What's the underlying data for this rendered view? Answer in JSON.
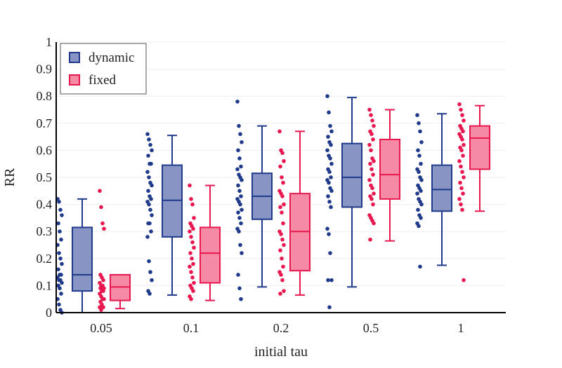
{
  "chart_data": {
    "type": "box",
    "title": "",
    "xlabel": "initial tau",
    "ylabel": "RR",
    "categories": [
      "0.05",
      "0.1",
      "0.2",
      "0.5",
      "1"
    ],
    "ylim": [
      0,
      1
    ],
    "yticks": [
      "0",
      "0.1",
      "0.2",
      "0.3",
      "0.4",
      "0.5",
      "0.6",
      "0.7",
      "0.8",
      "0.9",
      "1"
    ],
    "grid": "horizontal",
    "legend_position": "top-left",
    "series": [
      {
        "name": "dynamic",
        "color": "#1f3a8a",
        "fill": "#8794c4",
        "boxes": [
          {
            "min": 0.0,
            "q1": 0.08,
            "median": 0.14,
            "q3": 0.315,
            "max": 0.42
          },
          {
            "min": 0.065,
            "q1": 0.28,
            "median": 0.415,
            "q3": 0.545,
            "max": 0.655
          },
          {
            "min": 0.095,
            "q1": 0.345,
            "median": 0.43,
            "q3": 0.515,
            "max": 0.69
          },
          {
            "min": 0.095,
            "q1": 0.39,
            "median": 0.5,
            "q3": 0.625,
            "max": 0.795
          },
          {
            "min": 0.175,
            "q1": 0.375,
            "median": 0.455,
            "q3": 0.545,
            "max": 0.735
          }
        ],
        "points": [
          [
            0.42,
            0.41,
            0.38,
            0.36,
            0.33,
            0.3,
            0.27,
            0.25,
            0.22,
            0.2,
            0.18,
            0.16,
            0.14,
            0.14,
            0.13,
            0.12,
            0.12,
            0.11,
            0.1,
            0.09,
            0.07,
            0.05,
            0.03,
            0.01,
            0.0
          ],
          [
            0.66,
            0.64,
            0.62,
            0.6,
            0.58,
            0.55,
            0.55,
            0.52,
            0.5,
            0.48,
            0.47,
            0.45,
            0.43,
            0.42,
            0.41,
            0.4,
            0.38,
            0.36,
            0.33,
            0.33,
            0.3,
            0.28,
            0.19,
            0.15,
            0.12,
            0.08,
            0.07
          ],
          [
            0.78,
            0.69,
            0.66,
            0.63,
            0.6,
            0.57,
            0.54,
            0.53,
            0.51,
            0.5,
            0.49,
            0.47,
            0.45,
            0.43,
            0.42,
            0.41,
            0.4,
            0.38,
            0.37,
            0.35,
            0.33,
            0.31,
            0.3,
            0.25,
            0.22,
            0.14,
            0.09,
            0.05
          ],
          [
            0.8,
            0.74,
            0.69,
            0.67,
            0.65,
            0.63,
            0.62,
            0.6,
            0.58,
            0.57,
            0.55,
            0.53,
            0.52,
            0.5,
            0.49,
            0.48,
            0.46,
            0.45,
            0.43,
            0.41,
            0.39,
            0.31,
            0.29,
            0.22,
            0.12,
            0.12,
            0.02
          ],
          [
            0.73,
            0.7,
            0.67,
            0.63,
            0.6,
            0.58,
            0.55,
            0.53,
            0.52,
            0.5,
            0.49,
            0.47,
            0.46,
            0.45,
            0.44,
            0.42,
            0.41,
            0.4,
            0.38,
            0.36,
            0.35,
            0.33,
            0.32,
            0.17
          ]
        ]
      },
      {
        "name": "fixed",
        "color": "#e8174f",
        "fill": "#f48aa3",
        "boxes": [
          {
            "min": 0.015,
            "q1": 0.045,
            "median": 0.095,
            "q3": 0.14,
            "max": 0.14
          },
          {
            "min": 0.045,
            "q1": 0.11,
            "median": 0.22,
            "q3": 0.315,
            "max": 0.47
          },
          {
            "min": 0.065,
            "q1": 0.155,
            "median": 0.3,
            "q3": 0.44,
            "max": 0.67
          },
          {
            "min": 0.265,
            "q1": 0.42,
            "median": 0.51,
            "q3": 0.64,
            "max": 0.75
          },
          {
            "min": 0.375,
            "q1": 0.53,
            "median": 0.645,
            "q3": 0.69,
            "max": 0.765
          }
        ],
        "points": [
          [
            0.45,
            0.39,
            0.33,
            0.31,
            0.14,
            0.13,
            0.12,
            0.11,
            0.1,
            0.1,
            0.09,
            0.09,
            0.08,
            0.08,
            0.07,
            0.06,
            0.05,
            0.05,
            0.04,
            0.03,
            0.02,
            0.02,
            0.01
          ],
          [
            0.47,
            0.42,
            0.4,
            0.35,
            0.33,
            0.32,
            0.31,
            0.3,
            0.28,
            0.26,
            0.24,
            0.22,
            0.2,
            0.18,
            0.17,
            0.15,
            0.13,
            0.11,
            0.1,
            0.09,
            0.08,
            0.06,
            0.05
          ],
          [
            0.67,
            0.6,
            0.59,
            0.56,
            0.54,
            0.5,
            0.48,
            0.45,
            0.44,
            0.43,
            0.4,
            0.39,
            0.37,
            0.33,
            0.3,
            0.29,
            0.27,
            0.25,
            0.23,
            0.2,
            0.17,
            0.15,
            0.14,
            0.12,
            0.08,
            0.07
          ],
          [
            0.75,
            0.73,
            0.71,
            0.69,
            0.67,
            0.66,
            0.64,
            0.62,
            0.6,
            0.57,
            0.56,
            0.55,
            0.53,
            0.51,
            0.49,
            0.47,
            0.46,
            0.44,
            0.43,
            0.42,
            0.4,
            0.36,
            0.35,
            0.34,
            0.33,
            0.27
          ],
          [
            0.77,
            0.75,
            0.73,
            0.71,
            0.69,
            0.68,
            0.67,
            0.66,
            0.65,
            0.64,
            0.62,
            0.61,
            0.6,
            0.58,
            0.56,
            0.54,
            0.52,
            0.5,
            0.48,
            0.46,
            0.44,
            0.42,
            0.4,
            0.38,
            0.12
          ]
        ]
      }
    ]
  }
}
